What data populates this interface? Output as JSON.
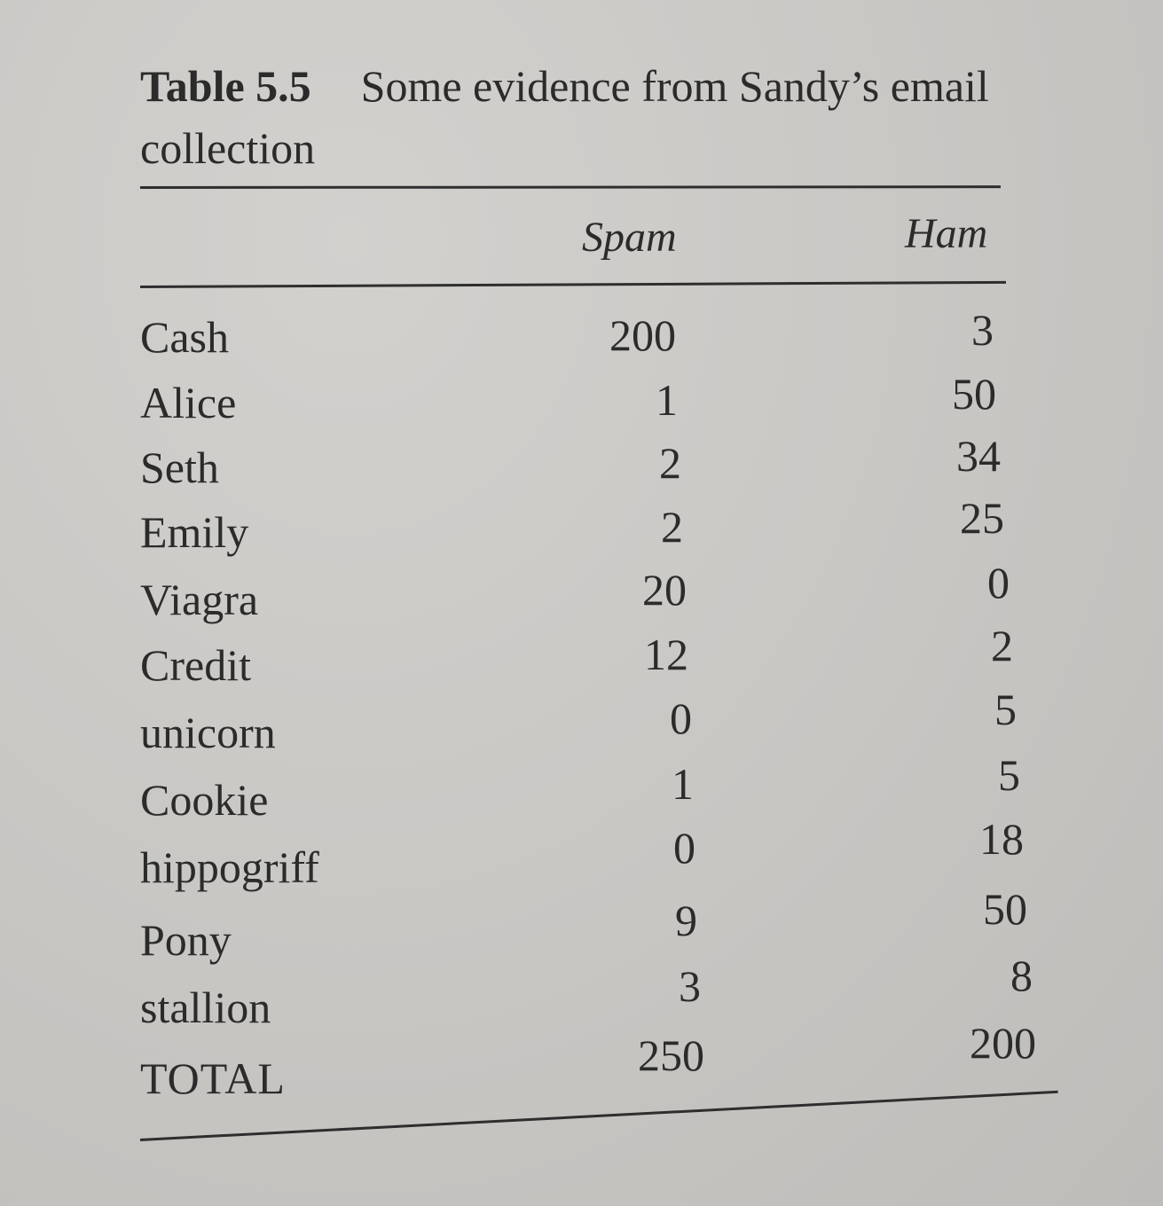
{
  "caption": {
    "label": "Table 5.5",
    "text": "Some evidence from Sandy’s email collection"
  },
  "columns": {
    "spam": "Spam",
    "ham": "Ham"
  },
  "rows": [
    {
      "word": "Cash",
      "spam": "200",
      "ham": "3"
    },
    {
      "word": "Alice",
      "spam": "1",
      "ham": "50"
    },
    {
      "word": "Seth",
      "spam": "2",
      "ham": "34"
    },
    {
      "word": "Emily",
      "spam": "2",
      "ham": "25"
    },
    {
      "word": "Viagra",
      "spam": "20",
      "ham": "0"
    },
    {
      "word": "Credit",
      "spam": "12",
      "ham": "2"
    },
    {
      "word": "unicorn",
      "spam": "0",
      "ham": "5"
    },
    {
      "word": "Cookie",
      "spam": "1",
      "ham": "5"
    },
    {
      "word": "hippogriff",
      "spam": "0",
      "ham": "18"
    },
    {
      "word": "Pony",
      "spam": "9",
      "ham": "50"
    },
    {
      "word": "stallion",
      "spam": "3",
      "ham": "8"
    }
  ],
  "total": {
    "word": "TOTAL",
    "spam": "250",
    "ham": "200"
  }
}
